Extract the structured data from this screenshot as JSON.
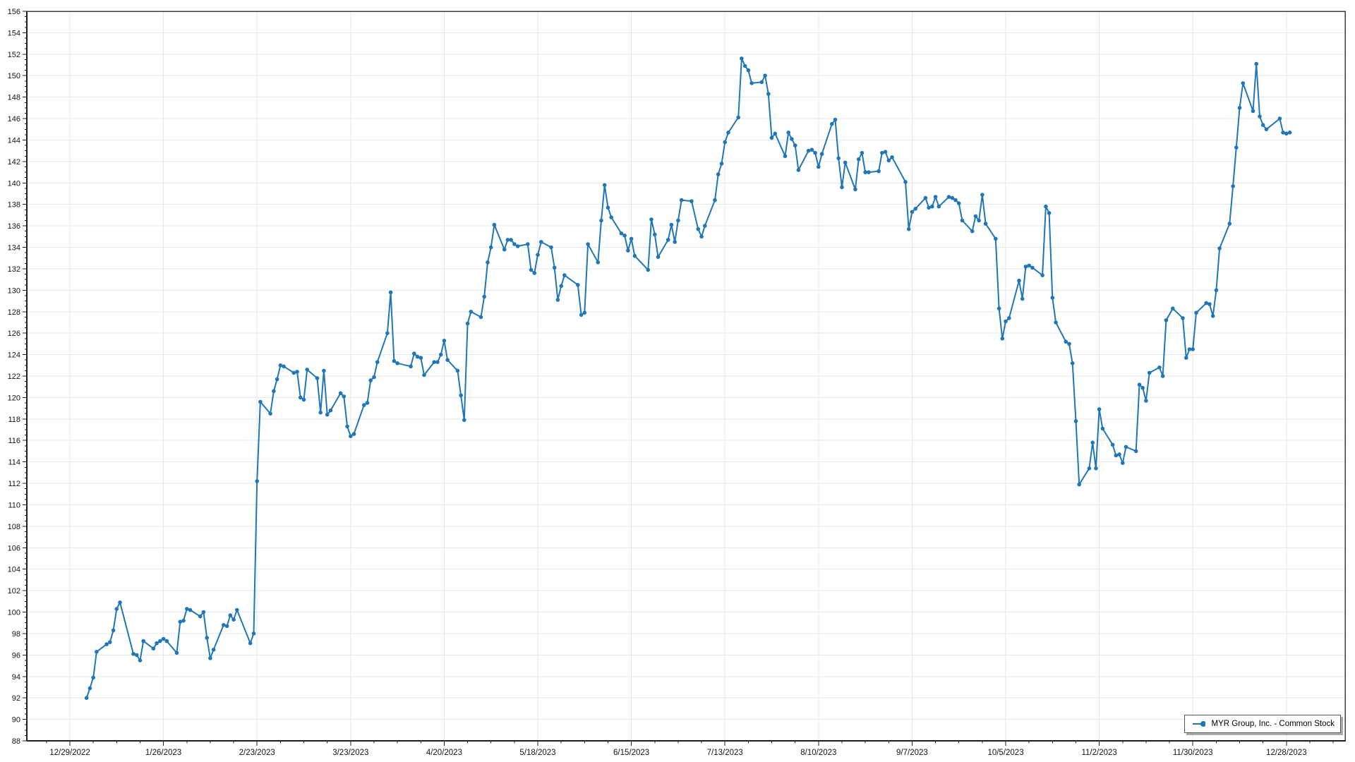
{
  "chart_data": {
    "type": "line",
    "title": "",
    "xlabel": "",
    "ylabel": "",
    "grid": true,
    "y_axis": {
      "min": 88,
      "max": 156,
      "tick_step": 2,
      "minor_tick_step": 0.5
    },
    "x_axis": {
      "tick_interval_days": 28,
      "minor_tick_interval_days": 7,
      "tick_labels": [
        "12/29/2022",
        "1/26/2023",
        "2/23/2023",
        "3/23/2023",
        "4/20/2023",
        "5/18/2023",
        "6/15/2023",
        "7/13/2023",
        "8/10/2023",
        "9/7/2023",
        "10/5/2023",
        "11/2/2023",
        "11/30/2023",
        "12/28/2023"
      ]
    },
    "legend": {
      "label": "MYR Group, Inc. - Common Stock",
      "position": "bottom-right"
    },
    "series": [
      {
        "name": "MYR Group, Inc. - Common Stock",
        "color": "#2176b5",
        "marker": "circle",
        "points": [
          [
            "1/3/2023",
            92.0
          ],
          [
            "1/4/2023",
            92.9
          ],
          [
            "1/5/2023",
            93.9
          ],
          [
            "1/6/2023",
            96.3
          ],
          [
            "1/9/2023",
            97.0
          ],
          [
            "1/10/2023",
            97.2
          ],
          [
            "1/11/2023",
            98.3
          ],
          [
            "1/12/2023",
            100.3
          ],
          [
            "1/13/2023",
            100.9
          ],
          [
            "1/17/2023",
            96.1
          ],
          [
            "1/18/2023",
            96.0
          ],
          [
            "1/19/2023",
            95.5
          ],
          [
            "1/20/2023",
            97.3
          ],
          [
            "1/23/2023",
            96.6
          ],
          [
            "1/24/2023",
            97.1
          ],
          [
            "1/25/2023",
            97.3
          ],
          [
            "1/26/2023",
            97.5
          ],
          [
            "1/27/2023",
            97.3
          ],
          [
            "1/30/2023",
            96.2
          ],
          [
            "1/31/2023",
            99.1
          ],
          [
            "2/1/2023",
            99.2
          ],
          [
            "2/2/2023",
            100.3
          ],
          [
            "2/3/2023",
            100.2
          ],
          [
            "2/6/2023",
            99.6
          ],
          [
            "2/7/2023",
            100.0
          ],
          [
            "2/8/2023",
            97.6
          ],
          [
            "2/9/2023",
            95.7
          ],
          [
            "2/10/2023",
            96.5
          ],
          [
            "2/13/2023",
            98.8
          ],
          [
            "2/14/2023",
            98.7
          ],
          [
            "2/15/2023",
            99.7
          ],
          [
            "2/16/2023",
            99.3
          ],
          [
            "2/17/2023",
            100.2
          ],
          [
            "2/21/2023",
            97.1
          ],
          [
            "2/22/2023",
            98.0
          ],
          [
            "2/23/2023",
            112.2
          ],
          [
            "2/24/2023",
            119.6
          ],
          [
            "2/27/2023",
            118.5
          ],
          [
            "2/28/2023",
            120.6
          ],
          [
            "3/1/2023",
            121.7
          ],
          [
            "3/2/2023",
            123.0
          ],
          [
            "3/3/2023",
            122.9
          ],
          [
            "3/6/2023",
            122.3
          ],
          [
            "3/7/2023",
            122.4
          ],
          [
            "3/8/2023",
            120.0
          ],
          [
            "3/9/2023",
            119.8
          ],
          [
            "3/10/2023",
            122.6
          ],
          [
            "3/13/2023",
            121.8
          ],
          [
            "3/14/2023",
            118.6
          ],
          [
            "3/15/2023",
            122.5
          ],
          [
            "3/16/2023",
            118.4
          ],
          [
            "3/17/2023",
            118.8
          ],
          [
            "3/20/2023",
            120.4
          ],
          [
            "3/21/2023",
            120.1
          ],
          [
            "3/22/2023",
            117.3
          ],
          [
            "3/23/2023",
            116.4
          ],
          [
            "3/24/2023",
            116.6
          ],
          [
            "3/27/2023",
            119.3
          ],
          [
            "3/28/2023",
            119.5
          ],
          [
            "3/29/2023",
            121.6
          ],
          [
            "3/30/2023",
            121.9
          ],
          [
            "3/31/2023",
            123.3
          ],
          [
            "4/3/2023",
            126.0
          ],
          [
            "4/4/2023",
            129.8
          ],
          [
            "4/5/2023",
            123.4
          ],
          [
            "4/6/2023",
            123.2
          ],
          [
            "4/10/2023",
            122.9
          ],
          [
            "4/11/2023",
            124.1
          ],
          [
            "4/12/2023",
            123.8
          ],
          [
            "4/13/2023",
            123.7
          ],
          [
            "4/14/2023",
            122.1
          ],
          [
            "4/17/2023",
            123.3
          ],
          [
            "4/18/2023",
            123.3
          ],
          [
            "4/19/2023",
            124.0
          ],
          [
            "4/20/2023",
            125.3
          ],
          [
            "4/21/2023",
            123.5
          ],
          [
            "4/24/2023",
            122.5
          ],
          [
            "4/25/2023",
            120.2
          ],
          [
            "4/26/2023",
            117.9
          ],
          [
            "4/27/2023",
            126.9
          ],
          [
            "4/28/2023",
            128.0
          ],
          [
            "5/1/2023",
            127.5
          ],
          [
            "5/2/2023",
            129.4
          ],
          [
            "5/3/2023",
            132.6
          ],
          [
            "5/4/2023",
            134.0
          ],
          [
            "5/5/2023",
            136.1
          ],
          [
            "5/8/2023",
            133.8
          ],
          [
            "5/9/2023",
            134.7
          ],
          [
            "5/10/2023",
            134.7
          ],
          [
            "5/11/2023",
            134.3
          ],
          [
            "5/12/2023",
            134.1
          ],
          [
            "5/15/2023",
            134.3
          ],
          [
            "5/16/2023",
            131.9
          ],
          [
            "5/17/2023",
            131.6
          ],
          [
            "5/18/2023",
            133.3
          ],
          [
            "5/19/2023",
            134.5
          ],
          [
            "5/22/2023",
            134.0
          ],
          [
            "5/23/2023",
            132.1
          ],
          [
            "5/24/2023",
            129.1
          ],
          [
            "5/25/2023",
            130.4
          ],
          [
            "5/26/2023",
            131.4
          ],
          [
            "5/30/2023",
            130.5
          ],
          [
            "5/31/2023",
            127.7
          ],
          [
            "6/1/2023",
            127.9
          ],
          [
            "6/2/2023",
            134.3
          ],
          [
            "6/5/2023",
            132.6
          ],
          [
            "6/6/2023",
            136.5
          ],
          [
            "6/7/2023",
            139.8
          ],
          [
            "6/8/2023",
            137.7
          ],
          [
            "6/9/2023",
            136.8
          ],
          [
            "6/12/2023",
            135.3
          ],
          [
            "6/13/2023",
            135.1
          ],
          [
            "6/14/2023",
            133.7
          ],
          [
            "6/15/2023",
            134.8
          ],
          [
            "6/16/2023",
            133.2
          ],
          [
            "6/20/2023",
            131.9
          ],
          [
            "6/21/2023",
            136.6
          ],
          [
            "6/22/2023",
            135.2
          ],
          [
            "6/23/2023",
            133.1
          ],
          [
            "6/26/2023",
            134.7
          ],
          [
            "6/27/2023",
            136.1
          ],
          [
            "6/28/2023",
            134.5
          ],
          [
            "6/29/2023",
            136.5
          ],
          [
            "6/30/2023",
            138.4
          ],
          [
            "7/3/2023",
            138.3
          ],
          [
            "7/5/2023",
            135.7
          ],
          [
            "7/6/2023",
            135.0
          ],
          [
            "7/7/2023",
            136.0
          ],
          [
            "7/10/2023",
            138.4
          ],
          [
            "7/11/2023",
            140.8
          ],
          [
            "7/12/2023",
            141.8
          ],
          [
            "7/13/2023",
            143.8
          ],
          [
            "7/14/2023",
            144.7
          ],
          [
            "7/17/2023",
            146.1
          ],
          [
            "7/18/2023",
            151.6
          ],
          [
            "7/19/2023",
            150.9
          ],
          [
            "7/20/2023",
            150.5
          ],
          [
            "7/21/2023",
            149.3
          ],
          [
            "7/24/2023",
            149.4
          ],
          [
            "7/25/2023",
            150.0
          ],
          [
            "7/26/2023",
            148.3
          ],
          [
            "7/27/2023",
            144.2
          ],
          [
            "7/28/2023",
            144.6
          ],
          [
            "7/31/2023",
            142.5
          ],
          [
            "8/1/2023",
            144.7
          ],
          [
            "8/2/2023",
            144.1
          ],
          [
            "8/3/2023",
            143.5
          ],
          [
            "8/4/2023",
            141.2
          ],
          [
            "8/7/2023",
            143.0
          ],
          [
            "8/8/2023",
            143.1
          ],
          [
            "8/9/2023",
            142.8
          ],
          [
            "8/10/2023",
            141.5
          ],
          [
            "8/11/2023",
            142.7
          ],
          [
            "8/14/2023",
            145.5
          ],
          [
            "8/15/2023",
            145.9
          ],
          [
            "8/16/2023",
            142.3
          ],
          [
            "8/17/2023",
            139.6
          ],
          [
            "8/18/2023",
            141.9
          ],
          [
            "8/21/2023",
            139.4
          ],
          [
            "8/22/2023",
            142.2
          ],
          [
            "8/23/2023",
            142.8
          ],
          [
            "8/24/2023",
            141.0
          ],
          [
            "8/25/2023",
            141.0
          ],
          [
            "8/28/2023",
            141.1
          ],
          [
            "8/29/2023",
            142.8
          ],
          [
            "8/30/2023",
            142.9
          ],
          [
            "8/31/2023",
            142.1
          ],
          [
            "9/1/2023",
            142.4
          ],
          [
            "9/5/2023",
            140.1
          ],
          [
            "9/6/2023",
            135.7
          ],
          [
            "9/7/2023",
            137.3
          ],
          [
            "9/8/2023",
            137.6
          ],
          [
            "9/11/2023",
            138.6
          ],
          [
            "9/12/2023",
            137.7
          ],
          [
            "9/13/2023",
            137.8
          ],
          [
            "9/14/2023",
            138.7
          ],
          [
            "9/15/2023",
            137.8
          ],
          [
            "9/18/2023",
            138.7
          ],
          [
            "9/19/2023",
            138.6
          ],
          [
            "9/20/2023",
            138.4
          ],
          [
            "9/21/2023",
            138.1
          ],
          [
            "9/22/2023",
            136.5
          ],
          [
            "9/25/2023",
            135.5
          ],
          [
            "9/26/2023",
            136.9
          ],
          [
            "9/27/2023",
            136.5
          ],
          [
            "9/28/2023",
            138.9
          ],
          [
            "9/29/2023",
            136.2
          ],
          [
            "10/2/2023",
            134.8
          ],
          [
            "10/3/2023",
            128.3
          ],
          [
            "10/4/2023",
            125.5
          ],
          [
            "10/5/2023",
            127.1
          ],
          [
            "10/6/2023",
            127.4
          ],
          [
            "10/9/2023",
            130.9
          ],
          [
            "10/10/2023",
            129.2
          ],
          [
            "10/11/2023",
            132.2
          ],
          [
            "10/12/2023",
            132.3
          ],
          [
            "10/13/2023",
            132.1
          ],
          [
            "10/16/2023",
            131.4
          ],
          [
            "10/17/2023",
            137.8
          ],
          [
            "10/18/2023",
            137.2
          ],
          [
            "10/19/2023",
            129.3
          ],
          [
            "10/20/2023",
            127.0
          ],
          [
            "10/23/2023",
            125.2
          ],
          [
            "10/24/2023",
            125.0
          ],
          [
            "10/25/2023",
            123.2
          ],
          [
            "10/26/2023",
            117.8
          ],
          [
            "10/27/2023",
            111.9
          ],
          [
            "10/30/2023",
            113.4
          ],
          [
            "10/31/2023",
            115.8
          ],
          [
            "11/1/2023",
            113.4
          ],
          [
            "11/2/2023",
            118.9
          ],
          [
            "11/3/2023",
            117.1
          ],
          [
            "11/6/2023",
            115.6
          ],
          [
            "11/7/2023",
            114.6
          ],
          [
            "11/8/2023",
            114.7
          ],
          [
            "11/9/2023",
            113.9
          ],
          [
            "11/10/2023",
            115.4
          ],
          [
            "11/13/2023",
            115.0
          ],
          [
            "11/14/2023",
            121.2
          ],
          [
            "11/15/2023",
            120.9
          ],
          [
            "11/16/2023",
            119.7
          ],
          [
            "11/17/2023",
            122.3
          ],
          [
            "11/20/2023",
            122.8
          ],
          [
            "11/21/2023",
            122.0
          ],
          [
            "11/22/2023",
            127.2
          ],
          [
            "11/24/2023",
            128.3
          ],
          [
            "11/27/2023",
            127.4
          ],
          [
            "11/28/2023",
            123.7
          ],
          [
            "11/29/2023",
            124.5
          ],
          [
            "11/30/2023",
            124.5
          ],
          [
            "12/1/2023",
            127.9
          ],
          [
            "12/4/2023",
            128.8
          ],
          [
            "12/5/2023",
            128.7
          ],
          [
            "12/6/2023",
            127.6
          ],
          [
            "12/7/2023",
            130.0
          ],
          [
            "12/8/2023",
            133.9
          ],
          [
            "12/11/2023",
            136.2
          ],
          [
            "12/12/2023",
            139.7
          ],
          [
            "12/13/2023",
            143.3
          ],
          [
            "12/14/2023",
            147.0
          ],
          [
            "12/15/2023",
            149.3
          ],
          [
            "12/18/2023",
            146.7
          ],
          [
            "12/19/2023",
            151.1
          ],
          [
            "12/20/2023",
            146.2
          ],
          [
            "12/21/2023",
            145.4
          ],
          [
            "12/22/2023",
            145.0
          ],
          [
            "12/26/2023",
            146.0
          ],
          [
            "12/27/2023",
            144.7
          ],
          [
            "12/28/2023",
            144.6
          ],
          [
            "12/29/2023",
            144.7
          ]
        ]
      }
    ],
    "colors": {
      "series_blue": "#2176b5",
      "gridline": "#e7e7e7",
      "axis_line": "#1c1c1c",
      "frame": "#3c3c3c",
      "tick_label": "#141414"
    }
  }
}
